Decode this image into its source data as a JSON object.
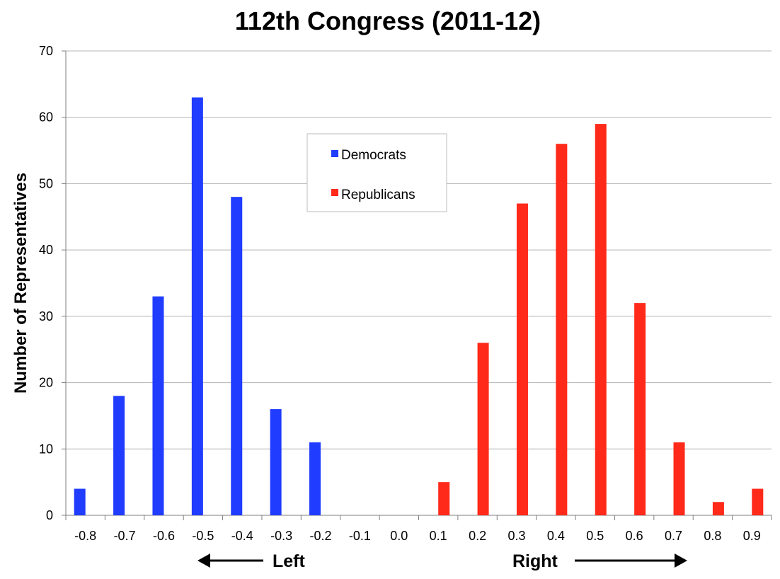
{
  "chart_data": {
    "type": "bar",
    "title": "112th Congress (2011-12)",
    "xlabel": "",
    "ylabel": "Number of Representatives",
    "categories": [
      "-0.8",
      "-0.7",
      "-0.6",
      "-0.5",
      "-0.4",
      "-0.3",
      "-0.2",
      "-0.1",
      "0.0",
      "0.1",
      "0.2",
      "0.3",
      "0.4",
      "0.5",
      "0.6",
      "0.7",
      "0.8",
      "0.9"
    ],
    "series": [
      {
        "name": "Democrats",
        "color": "#1f3cff",
        "values": [
          4,
          18,
          33,
          63,
          48,
          16,
          11,
          0,
          0,
          0,
          0,
          0,
          0,
          0,
          0,
          0,
          0,
          0
        ]
      },
      {
        "name": "Republicans",
        "color": "#ff2a1a",
        "values": [
          0,
          0,
          0,
          0,
          0,
          0,
          0,
          0,
          0,
          5,
          26,
          47,
          56,
          59,
          32,
          11,
          2,
          4
        ]
      }
    ],
    "ylim": [
      0,
      70
    ],
    "yticks": [
      0,
      10,
      20,
      30,
      40,
      50,
      60,
      70
    ],
    "grid": true,
    "legend_position": "top-center",
    "direction_labels": {
      "left": "Left",
      "right": "Right"
    }
  }
}
